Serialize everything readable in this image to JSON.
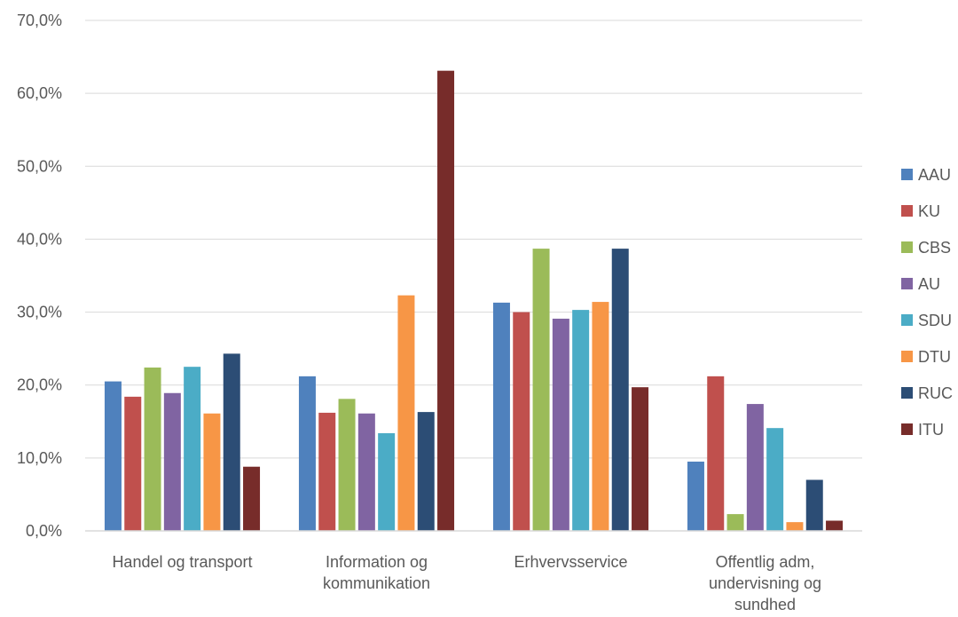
{
  "chart_data": {
    "type": "bar",
    "title": "",
    "xlabel": "",
    "ylabel": "",
    "ylim": [
      0,
      70
    ],
    "y_ticks": [
      "0,0%",
      "10,0%",
      "20,0%",
      "30,0%",
      "40,0%",
      "50,0%",
      "60,0%",
      "70,0%"
    ],
    "y_tick_values": [
      0,
      10,
      20,
      30,
      40,
      50,
      60,
      70
    ],
    "grid": true,
    "legend_position": "right",
    "categories": [
      [
        "Handel og transport"
      ],
      [
        "Information og",
        "kommunikation"
      ],
      [
        "Erhvervsservice"
      ],
      [
        "Offentlig adm,",
        "undervisning og",
        "sundhed"
      ]
    ],
    "series": [
      {
        "name": "AAU",
        "color": "#4F81BD",
        "values": [
          20.5,
          21.2,
          31.3,
          9.5
        ]
      },
      {
        "name": "KU",
        "color": "#C0504D",
        "values": [
          18.4,
          16.2,
          30.0,
          21.2
        ]
      },
      {
        "name": "CBS",
        "color": "#9BBB59",
        "values": [
          22.4,
          18.1,
          38.7,
          2.3
        ]
      },
      {
        "name": "AU",
        "color": "#8064A2",
        "values": [
          18.9,
          16.1,
          29.1,
          17.4
        ]
      },
      {
        "name": "SDU",
        "color": "#4BACC6",
        "values": [
          22.5,
          13.4,
          30.3,
          14.1
        ]
      },
      {
        "name": "DTU",
        "color": "#F79646",
        "values": [
          16.1,
          32.3,
          31.4,
          1.2
        ]
      },
      {
        "name": "RUC",
        "color": "#2C4D75",
        "values": [
          24.3,
          16.3,
          38.7,
          7.0
        ]
      },
      {
        "name": "ITU",
        "color": "#772C2A",
        "values": [
          8.8,
          63.1,
          19.7,
          1.4
        ]
      }
    ]
  }
}
